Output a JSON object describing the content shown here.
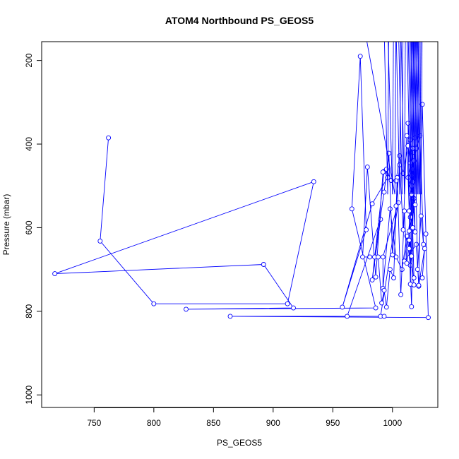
{
  "chart_data": {
    "type": "line",
    "title": "ATOM4 Northbound PS_GEOS5",
    "xlabel": "PS_GEOS5",
    "ylabel": "Pressure (mbar)",
    "xlim": [
      706,
      1038
    ],
    "ylim": [
      1030,
      155
    ],
    "y_reversed": true,
    "x_ticks": [
      750,
      800,
      850,
      900,
      950,
      1000
    ],
    "y_ticks": [
      200,
      400,
      600,
      800,
      1000
    ],
    "grid": false,
    "legend": "none",
    "marker": "open-circle",
    "series": [
      {
        "color": "#0000ff",
        "points": [
          [
            762,
            385
          ],
          [
            755,
            632
          ],
          [
            800,
            782
          ],
          [
            912,
            782
          ],
          [
            934,
            490
          ],
          [
            717,
            710
          ],
          [
            892,
            688
          ],
          [
            917,
            792
          ],
          [
            827,
            795
          ],
          [
            986,
            792
          ],
          [
            966,
            555
          ],
          [
            973,
            190
          ],
          [
            978,
            605
          ],
          [
            958,
            790
          ],
          [
            983,
            543
          ],
          [
            996,
            480
          ],
          [
            993,
            465
          ],
          [
            983,
            725
          ],
          [
            990,
            580
          ],
          [
            962,
            812
          ],
          [
            990,
            812
          ],
          [
            1005,
            540
          ],
          [
            992,
            670
          ],
          [
            992,
            745
          ],
          [
            998,
            555
          ],
          [
            1003,
            670
          ],
          [
            1008,
            700
          ],
          [
            1012,
            620
          ],
          [
            1015,
            690
          ],
          [
            1017,
            420
          ],
          [
            1013,
            480
          ],
          [
            1018,
            530
          ],
          [
            1015,
            575
          ],
          [
            1010,
            680
          ],
          [
            1020,
            640
          ],
          [
            1022,
            740
          ],
          [
            1025,
            305
          ],
          [
            1028,
            615
          ],
          [
            1030,
            815
          ],
          [
            864,
            812
          ],
          [
            993,
            812
          ]
        ]
      },
      {
        "color": "#0000ff",
        "points": [
          [
            985,
            670
          ],
          [
            993,
            515
          ],
          [
            997,
            422
          ],
          [
            1000,
            665
          ],
          [
            1003,
            548
          ],
          [
            1006,
            450
          ],
          [
            1009,
            605
          ],
          [
            1012,
            380
          ],
          [
            1014,
            560
          ],
          [
            1016,
            500
          ],
          [
            1018,
            440
          ],
          [
            1015,
            735
          ],
          [
            1013,
            350
          ],
          [
            1016,
            475
          ],
          [
            1019,
            610
          ],
          [
            1017,
            410
          ],
          [
            1014,
            650
          ],
          [
            1016,
            520
          ],
          [
            1018,
            720
          ],
          [
            1015,
            390
          ],
          [
            1017,
            460
          ],
          [
            1020,
            410
          ],
          [
            1023,
            380
          ],
          [
            1026,
            640
          ],
          [
            1024,
            572
          ],
          [
            1021,
            700
          ],
          [
            1019,
            385
          ],
          [
            1017,
            600
          ],
          [
            1016,
            789
          ],
          [
            1014,
            630
          ],
          [
            1012,
            685
          ],
          [
            1010,
            560
          ],
          [
            1007,
            760
          ],
          [
            1004,
            480
          ],
          [
            1001,
            720
          ],
          [
            998,
            700
          ],
          [
            995,
            790
          ],
          [
            993,
            750
          ],
          [
            991,
            780
          ],
          [
            988,
            670
          ],
          [
            981,
            670
          ],
          [
            975,
            670
          ],
          [
            979,
            455
          ],
          [
            986,
            718
          ],
          [
            992,
            467
          ],
          [
            995,
            460
          ],
          [
            999,
            487
          ],
          [
            1003,
            488
          ],
          [
            1006,
            428
          ],
          [
            1009,
            470
          ],
          [
            1013,
            404
          ],
          [
            1015,
            445
          ],
          [
            1017,
            490
          ],
          [
            1019,
            545
          ],
          [
            1014,
            608
          ],
          [
            1016,
            668
          ],
          [
            1018,
            737
          ],
          [
            1022,
            738
          ],
          [
            1027,
            650
          ],
          [
            1025,
            720
          ]
        ]
      }
    ],
    "spikes_above_top": [
      [
        976,
        1002
      ],
      [
        993,
        996
      ],
      [
        996,
        1000
      ],
      [
        1003,
        1006
      ],
      [
        1005,
        1008
      ],
      [
        1007,
        1010
      ],
      [
        1012,
        1015
      ],
      [
        1013,
        1016
      ],
      [
        1014,
        1017
      ],
      [
        1015,
        1018
      ],
      [
        1016,
        1019
      ],
      [
        1017,
        1020
      ],
      [
        1018,
        1021
      ],
      [
        1019,
        1022
      ],
      [
        1020,
        1023
      ],
      [
        1021,
        1024
      ]
    ]
  }
}
